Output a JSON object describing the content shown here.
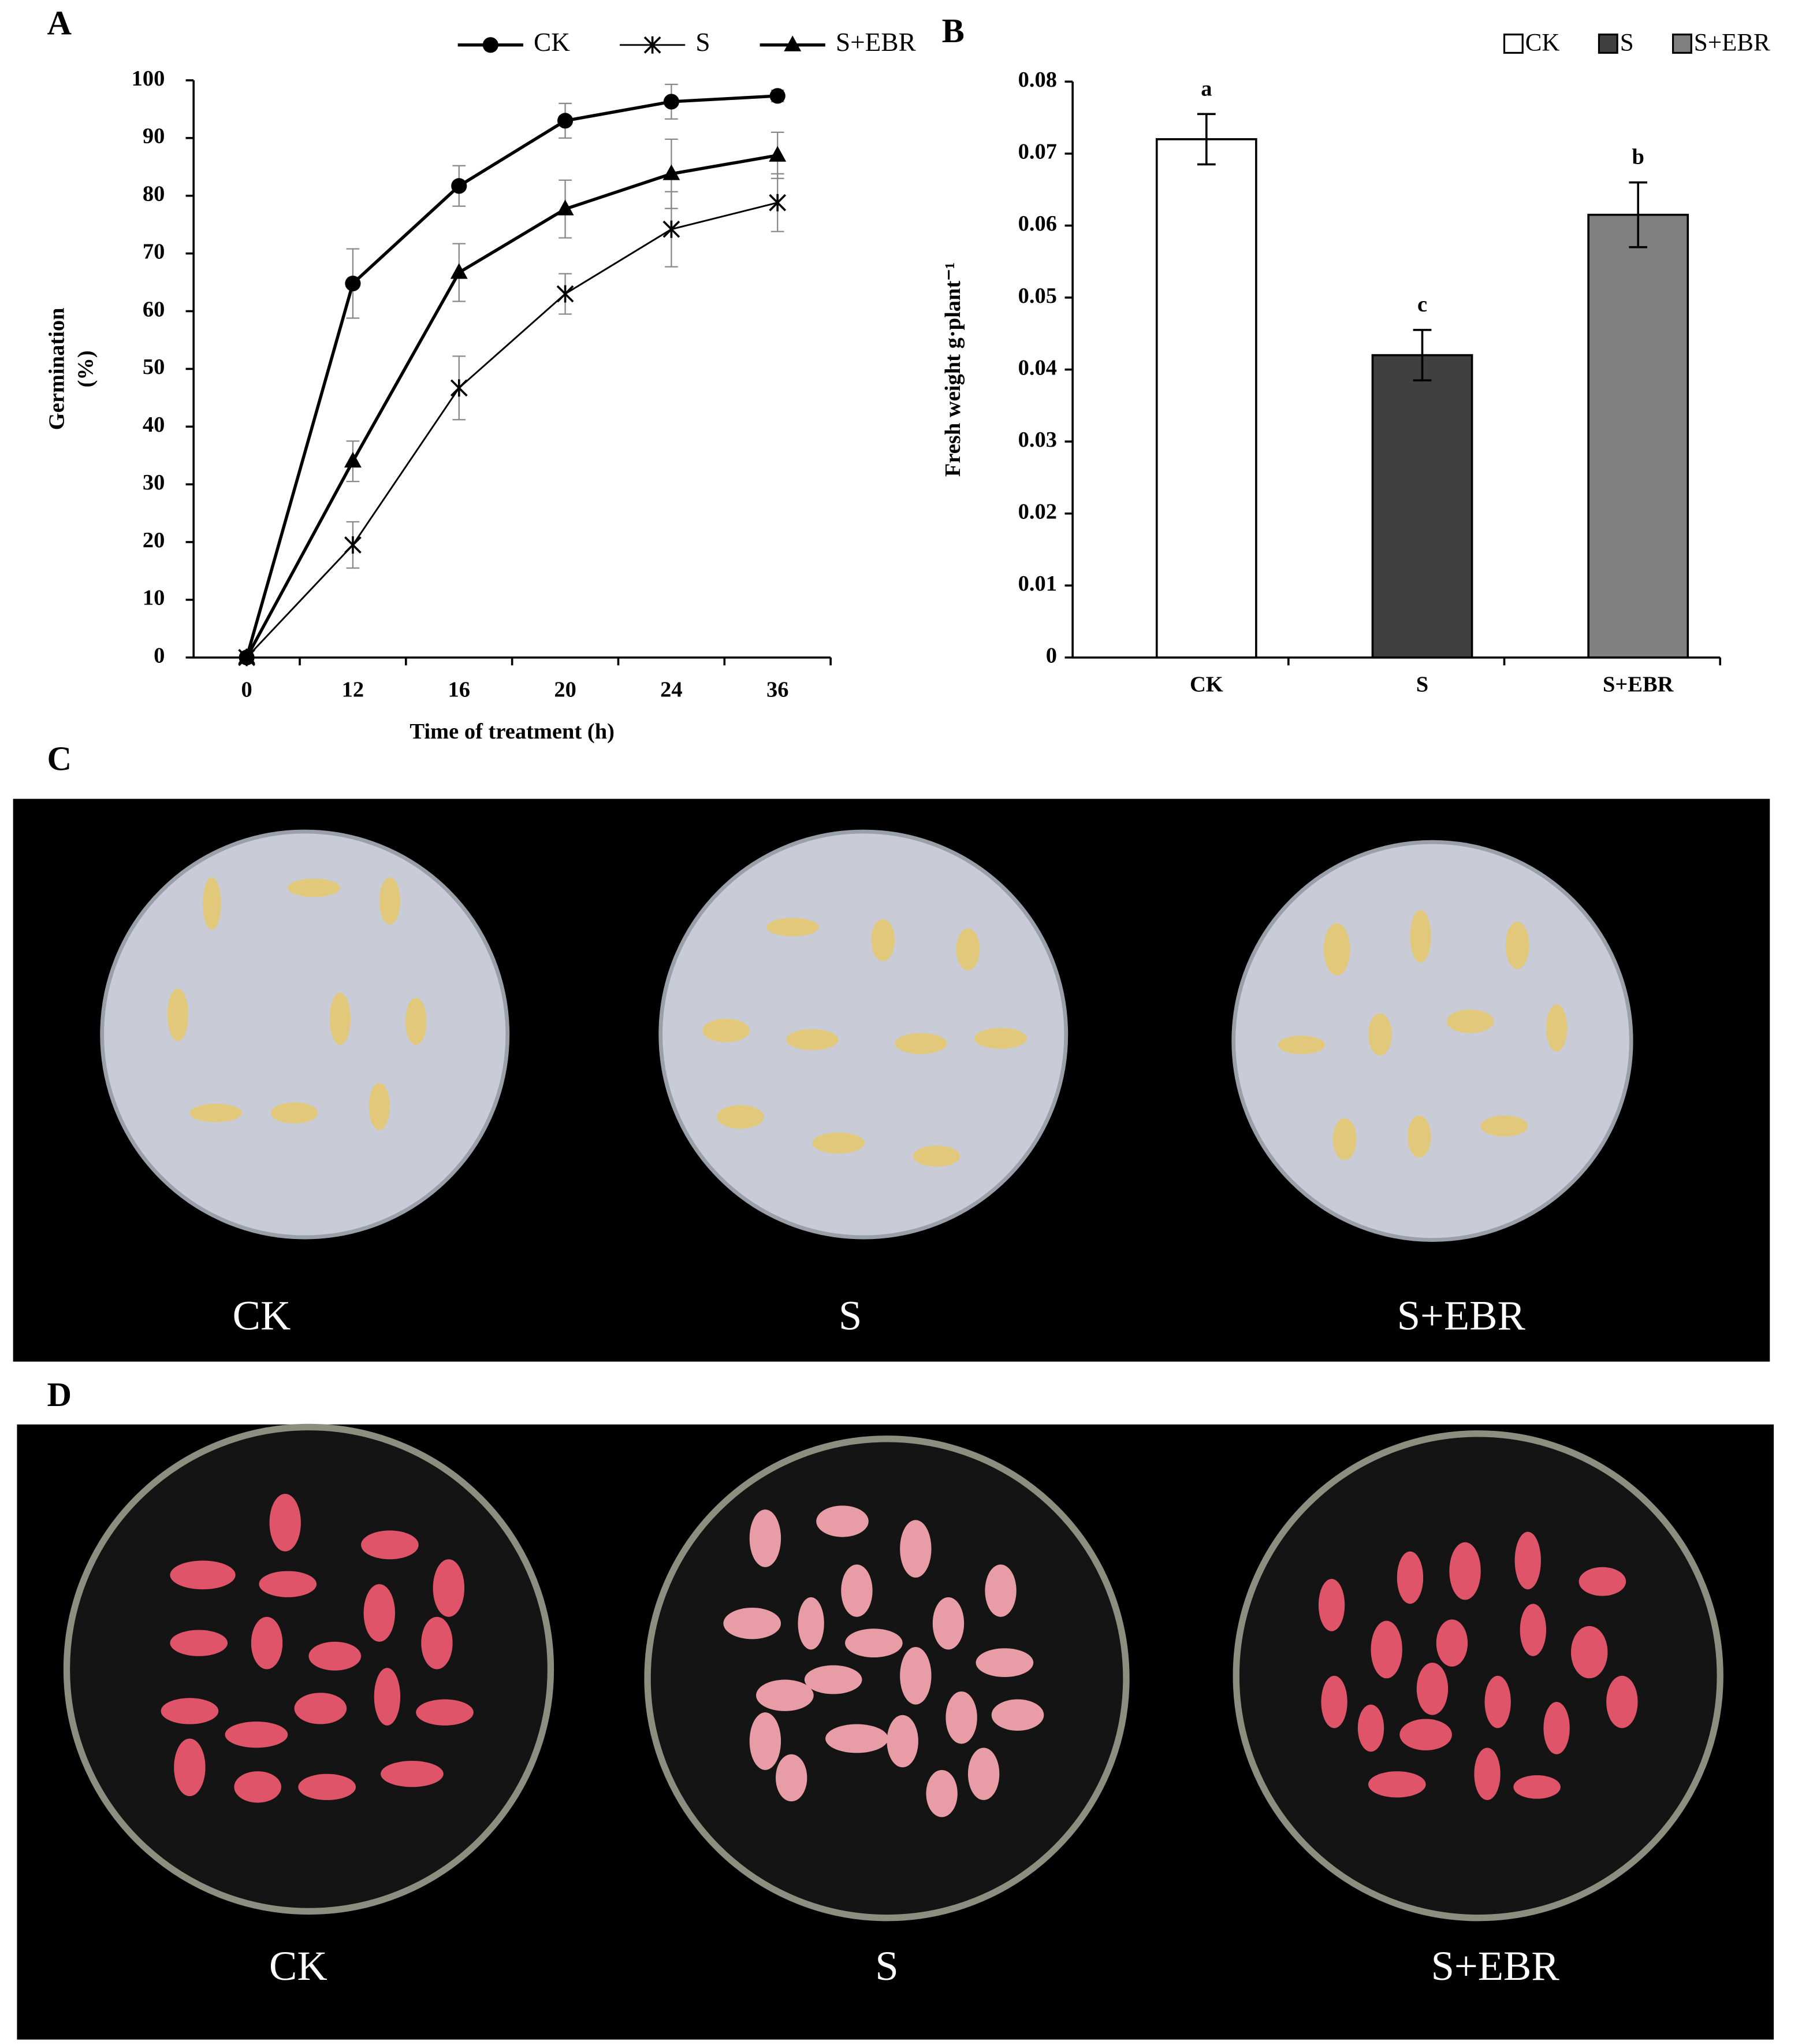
{
  "chart_data": [
    {
      "type": "line",
      "panel": "A",
      "categories": [
        0,
        12,
        16,
        20,
        24,
        36
      ],
      "series": [
        {
          "name": "CK",
          "color": "#000000",
          "marker": "circle",
          "values": [
            0,
            64.8,
            81.7,
            93,
            96.3,
            97.3
          ],
          "errors": [
            0,
            6,
            3.5,
            3,
            3,
            1
          ]
        },
        {
          "name": "S",
          "color": "#000000",
          "marker": "asterisk",
          "values": [
            0,
            19.5,
            46.7,
            63,
            74.2,
            78.8
          ],
          "errors": [
            0,
            4,
            5.5,
            3.5,
            6.5,
            5
          ]
        },
        {
          "name": "S+EBR",
          "color": "#000000",
          "marker": "triangle",
          "values": [
            0,
            34,
            66.7,
            77.7,
            83.8,
            87
          ],
          "errors": [
            0,
            3.5,
            5,
            5,
            6,
            4
          ]
        }
      ],
      "ylim": [
        0,
        100
      ],
      "yticks": [
        0,
        10,
        20,
        30,
        40,
        50,
        60,
        70,
        80,
        90,
        100
      ],
      "xlabel": "Time of treatment (h)",
      "ylabel": [
        "Germination",
        "(%)"
      ],
      "grid": false,
      "legend": "top"
    },
    {
      "type": "bar",
      "panel": "B",
      "categories": [
        "CK",
        "S",
        "S+EBR"
      ],
      "values": [
        0.072,
        0.042,
        0.0615
      ],
      "errors": [
        0.0035,
        0.0035,
        0.0045
      ],
      "colors": [
        "#ffffff",
        "#404040",
        "#808080"
      ],
      "annotations": [
        "a",
        "c",
        "b"
      ],
      "ylim": [
        0,
        0.08
      ],
      "yticks": [
        0,
        0.01,
        0.02,
        0.03,
        0.04,
        0.05,
        0.06,
        0.07,
        0.08
      ],
      "ylabel": "Fresh weight  g·plant⁻¹",
      "grid": false,
      "legend": "top-right"
    }
  ],
  "photos": [
    {
      "panel": "C",
      "labels": [
        "CK",
        "S",
        "S+EBR"
      ]
    },
    {
      "panel": "D",
      "labels": [
        "CK",
        "S",
        "S+EBR"
      ]
    }
  ]
}
